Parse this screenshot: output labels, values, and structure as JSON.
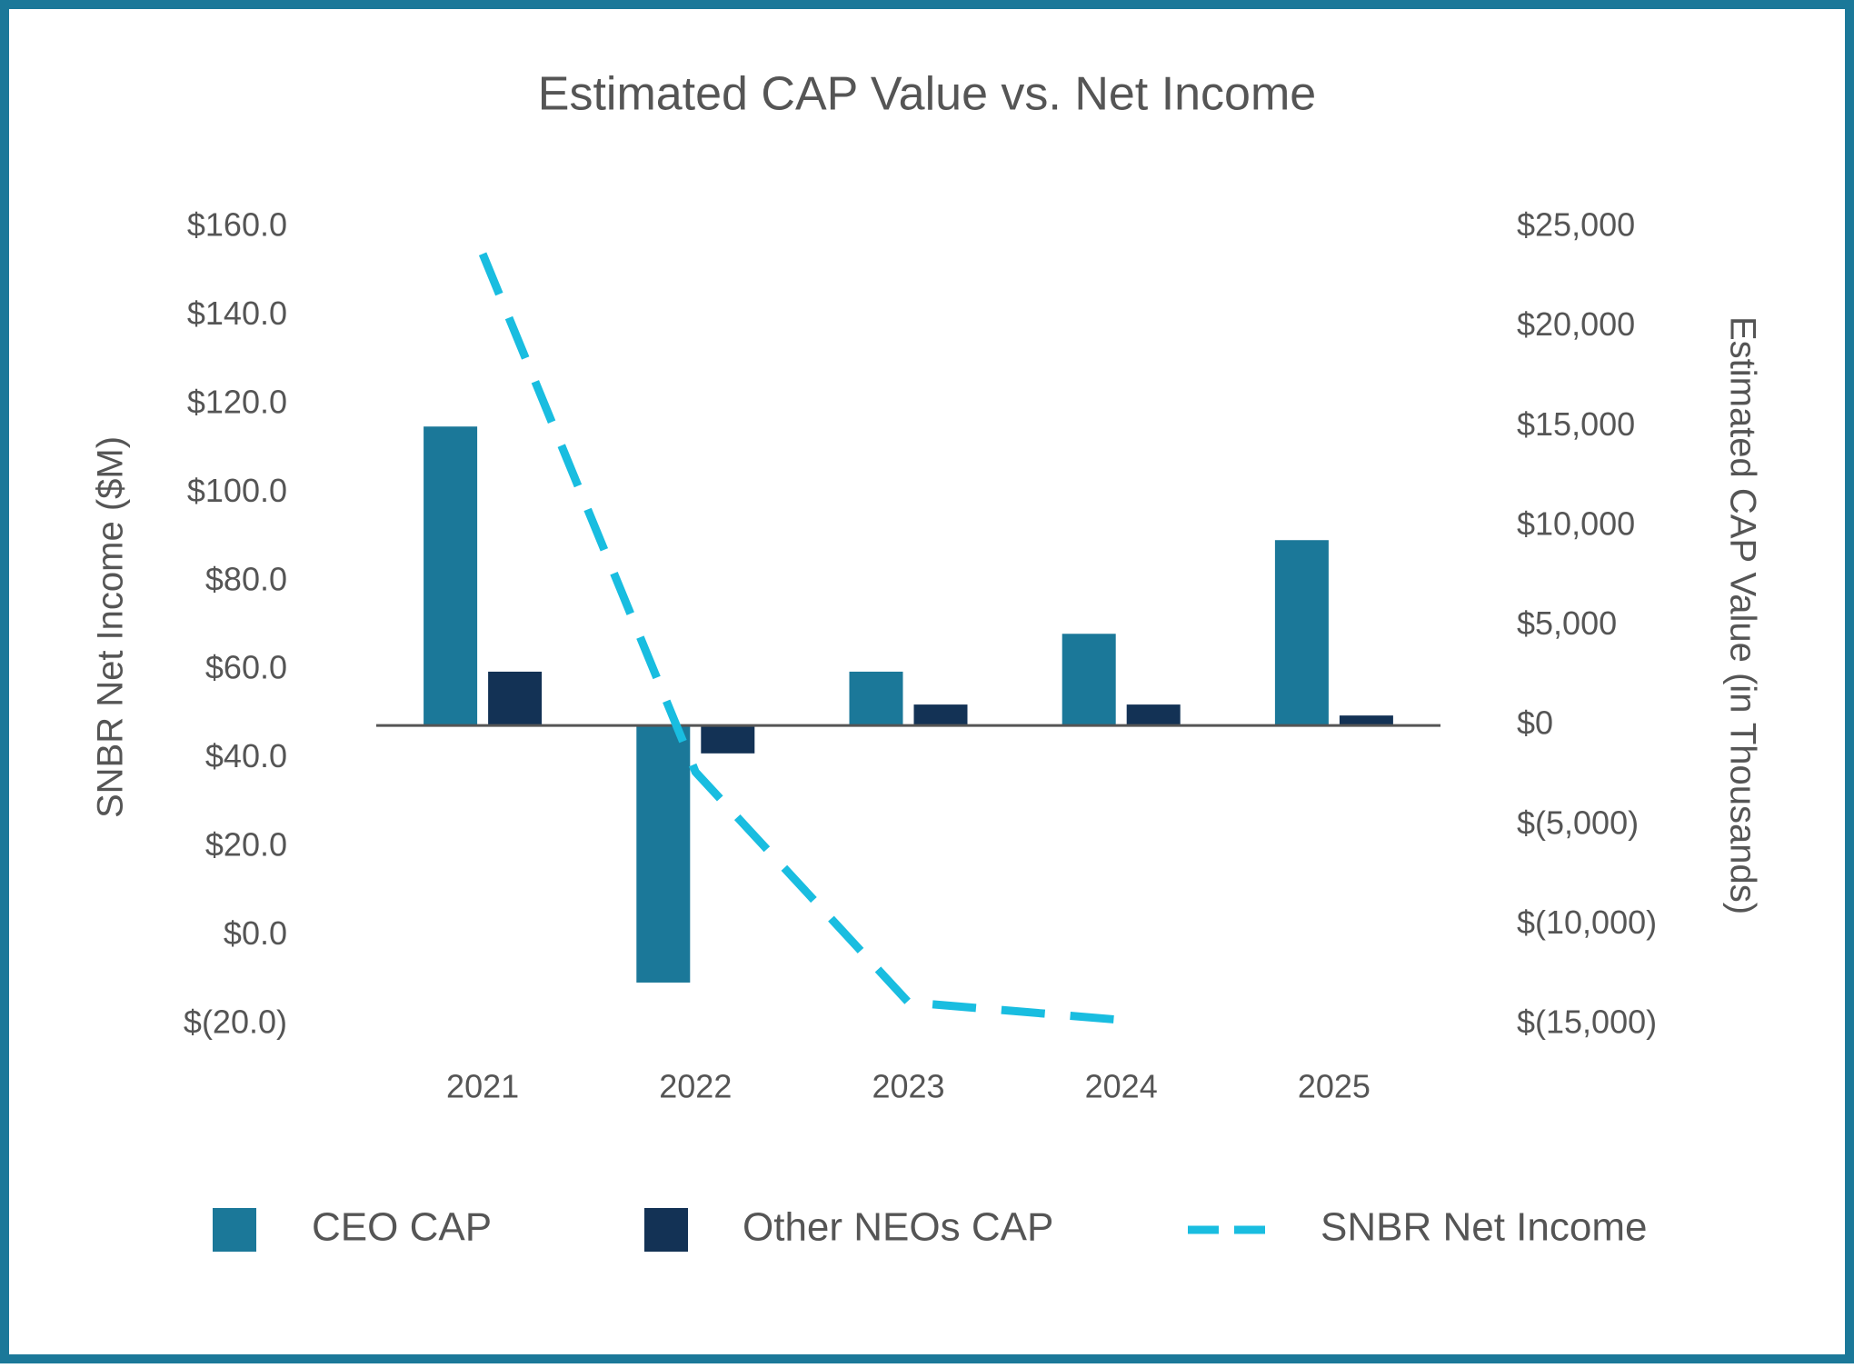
{
  "chart_data": {
    "type": "bar",
    "title": "Estimated CAP Value vs. Net Income",
    "y_label": "SNBR Net Income ($M)",
    "y2_label": "Estimated CAP Value (in Thousands)",
    "categories": [
      "2021",
      "2022",
      "2023",
      "2024",
      "2025"
    ],
    "series": [
      {
        "name": "CEO CAP",
        "type": "bar",
        "axis": "y2",
        "color": "#1b7899",
        "values": [
          15000,
          -12900,
          2700,
          4600,
          9300
        ]
      },
      {
        "name": "Other NEOs CAP",
        "type": "bar",
        "axis": "y2",
        "color": "#133255",
        "values": [
          2700,
          -1400,
          1050,
          1050,
          500
        ]
      },
      {
        "name": "SNBR Net Income",
        "type": "line",
        "axis": "y",
        "color": "#19bde0",
        "dashed": true,
        "values": [
          154,
          37,
          -15,
          -19,
          null
        ]
      }
    ],
    "ylim": [
      -20,
      160
    ],
    "yticks": [
      {
        "value": -20,
        "label": "$(20.0)"
      },
      {
        "value": 0,
        "label": "$0.0"
      },
      {
        "value": 20,
        "label": "$20.0"
      },
      {
        "value": 40,
        "label": "$40.0"
      },
      {
        "value": 60,
        "label": "$60.0"
      },
      {
        "value": 80,
        "label": "$80.0"
      },
      {
        "value": 100,
        "label": "$100.0"
      },
      {
        "value": 120,
        "label": "$120.0"
      },
      {
        "value": 140,
        "label": "$140.0"
      },
      {
        "value": 160,
        "label": "$160.0"
      }
    ],
    "y2lim": [
      -15000,
      25000
    ],
    "y2ticks": [
      {
        "value": -15000,
        "label": "$(15,000)"
      },
      {
        "value": -10000,
        "label": "$(10,000)"
      },
      {
        "value": -5000,
        "label": "$(5,000)"
      },
      {
        "value": 0,
        "label": "$0"
      },
      {
        "value": 5000,
        "label": "$5,000"
      },
      {
        "value": 10000,
        "label": "$10,000"
      },
      {
        "value": 15000,
        "label": "$15,000"
      },
      {
        "value": 20000,
        "label": "$20,000"
      },
      {
        "value": 25000,
        "label": "$25,000"
      }
    ],
    "grid": false,
    "legend": "bottom"
  }
}
